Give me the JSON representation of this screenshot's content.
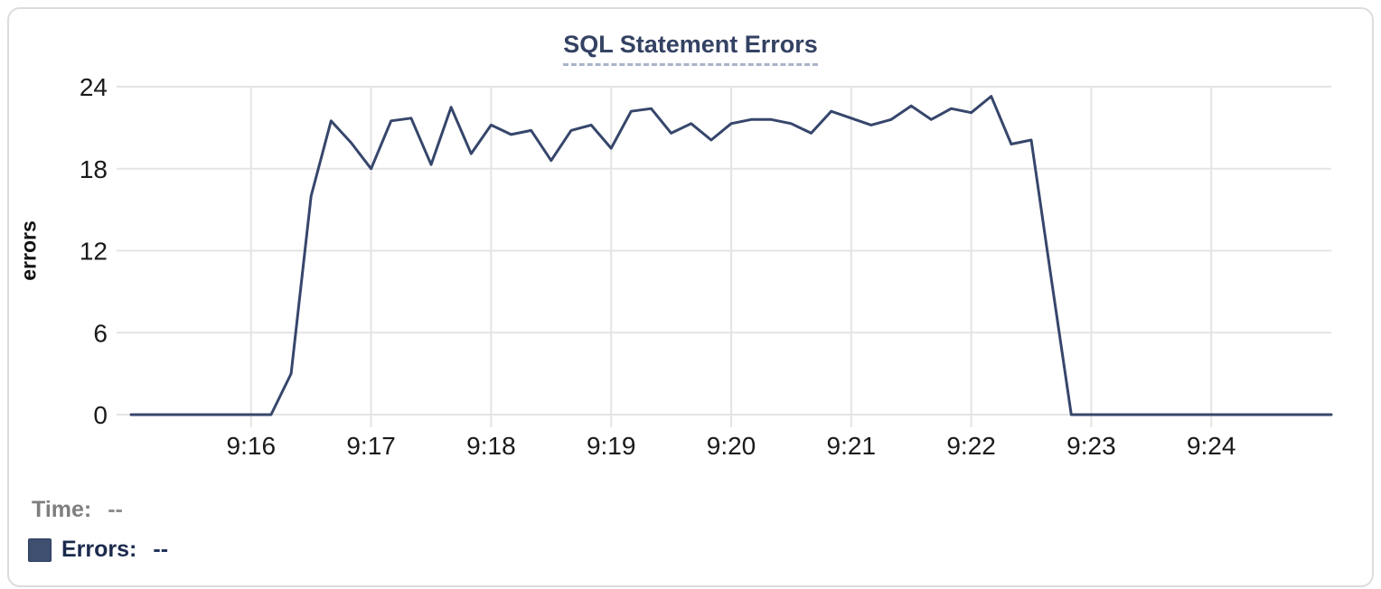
{
  "card": {
    "title": "SQL Statement Errors"
  },
  "tooltip": {
    "time_label": "Time:",
    "time_value": "--",
    "errors_label": "Errors:",
    "errors_value": "--"
  },
  "colors": {
    "line": "#36466b",
    "title_text": "#344263",
    "title_dash": "#a9b4c9",
    "swatch": "#3e4f70",
    "errors_text": "#1b2a4d",
    "time_text": "#7e7e7e",
    "grid": "#e4e4e4",
    "tick_text": "#1a1a1a",
    "card_border": "#dcdcdc"
  },
  "chart_data": {
    "type": "line",
    "title": "SQL Statement Errors",
    "xlabel": "",
    "ylabel": "errors",
    "ylim": [
      0,
      24
    ],
    "y_ticks": [
      0,
      6,
      12,
      18,
      24
    ],
    "x_ticks": [
      "9:16",
      "9:17",
      "9:18",
      "9:19",
      "9:20",
      "9:21",
      "9:22",
      "9:23",
      "9:24"
    ],
    "x_tick_seconds": [
      60,
      120,
      180,
      240,
      300,
      360,
      420,
      480,
      540
    ],
    "x_start": "9:15:00",
    "x_end": "9:25:00",
    "x_range_seconds": [
      0,
      600
    ],
    "interval_seconds": 10,
    "grid": true,
    "legend_position": "bottom-left",
    "series": [
      {
        "name": "Errors",
        "values": [
          0,
          0,
          0,
          0,
          0,
          0,
          0,
          0,
          3,
          16,
          21.5,
          19.9,
          18,
          21.5,
          21.7,
          18.3,
          22.5,
          19.1,
          21.2,
          20.5,
          20.8,
          18.6,
          20.8,
          21.2,
          19.5,
          22.2,
          22.4,
          20.6,
          21.3,
          20.1,
          21.3,
          21.6,
          21.6,
          21.3,
          20.6,
          22.2,
          21.7,
          21.2,
          21.6,
          22.6,
          21.6,
          22.4,
          22.1,
          23.3,
          19.8,
          20.1,
          10,
          0,
          0,
          0,
          0,
          0,
          0,
          0,
          0,
          0,
          0,
          0,
          0,
          0,
          0
        ]
      }
    ]
  }
}
